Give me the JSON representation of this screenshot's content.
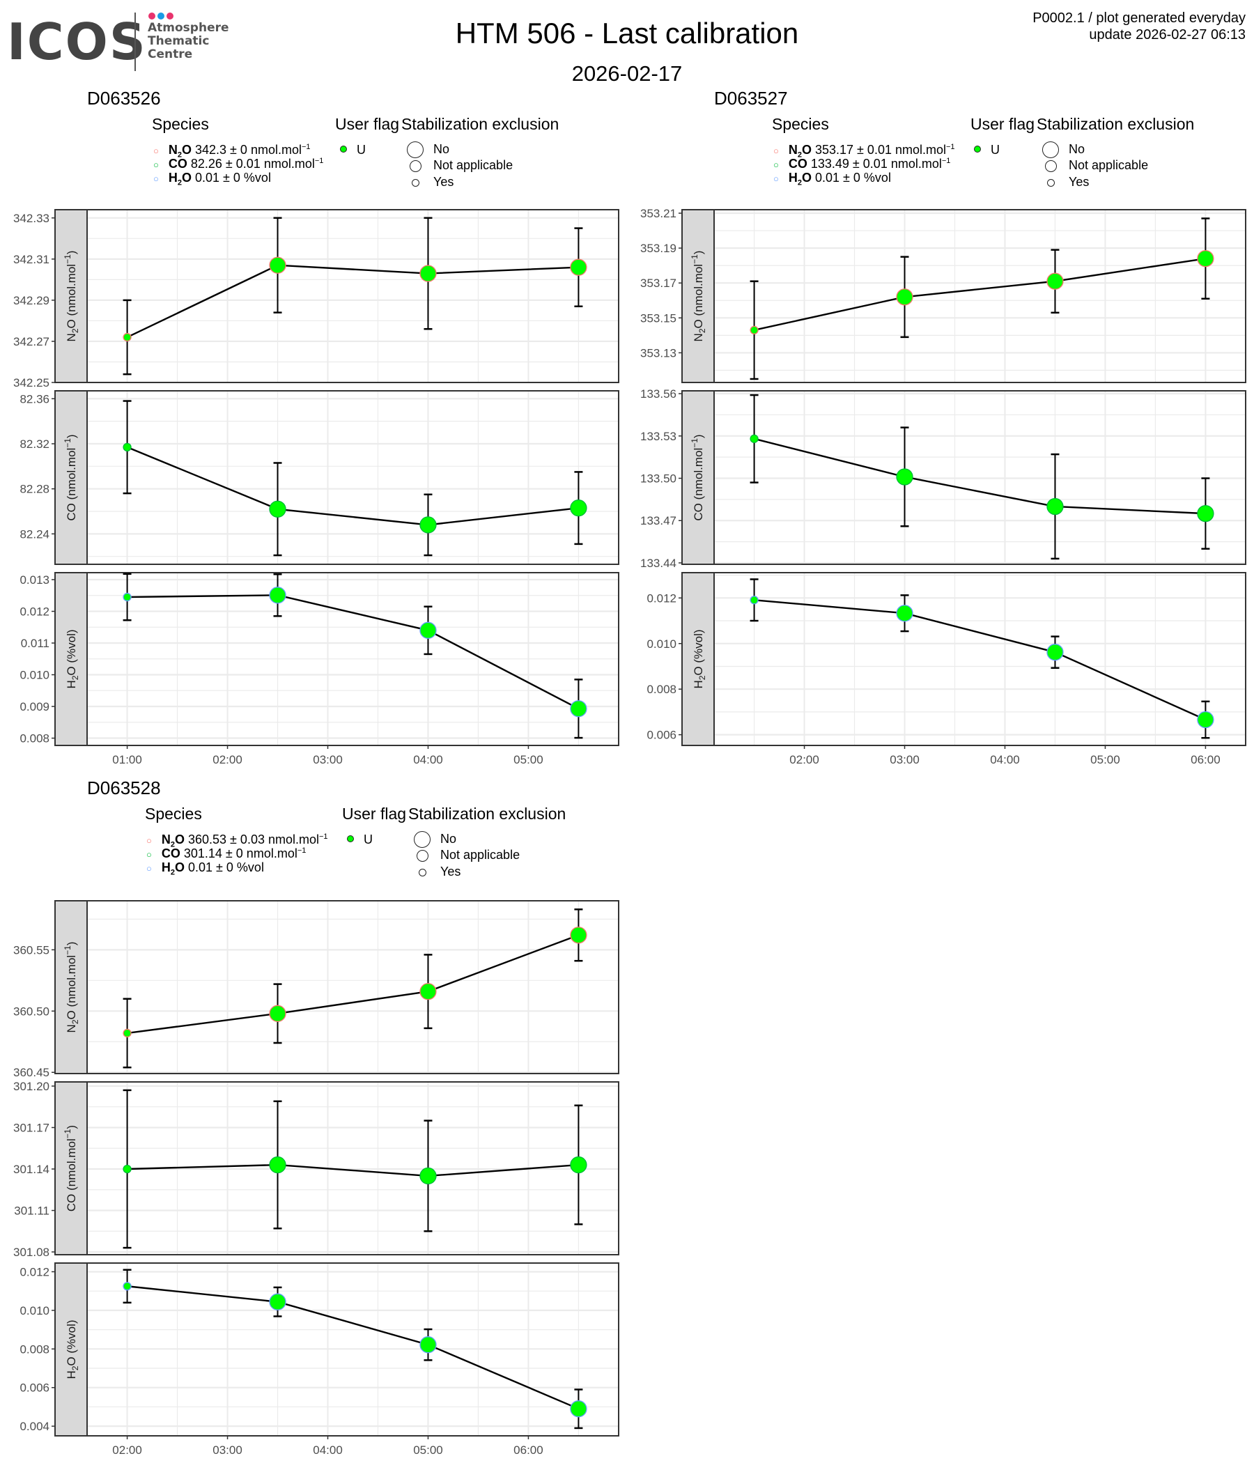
{
  "header": {
    "logo": {
      "word": "ICOS",
      "lines": [
        "Atmosphere",
        "Thematic",
        "Centre"
      ],
      "dot_colors": [
        "#e8336d",
        "#1a9be6",
        "#e8336d"
      ]
    },
    "title": "HTM 506 - Last calibration",
    "date": "2026-02-17",
    "info_line1": "P0002.1 / plot generated everyday",
    "info_line2": "update  2026-02-27 06:13"
  },
  "legend_labels": {
    "species_title": "Species",
    "flag_title": "User flag",
    "stab_title": "Stabilization exclusion",
    "flag_value": "U",
    "stab_values": [
      "No",
      "Not applicable",
      "Yes"
    ],
    "species_colors": {
      "N2O": "#f8766d",
      "CO": "#00ba38",
      "H2O": "#619cff"
    },
    "point_fill": "#00ff00"
  },
  "chart_data": [
    {
      "type": "line",
      "id": "D063526",
      "title": "D063526",
      "legend": {
        "N2O": {
          "name_main": "N",
          "name_sub": "2",
          "name_end": "O",
          "value": "342.3",
          "pm": "±",
          "unc": "0",
          "unit": "nmol.mol",
          "unit_sup": "−1"
        },
        "CO": {
          "name_main": "CO",
          "value": "82.26",
          "pm": "±",
          "unc": "0.01",
          "unit": "nmol.mol",
          "unit_sup": "−1"
        },
        "H2O": {
          "name_main": "H",
          "name_sub": "2",
          "name_end": "O",
          "value": "0.01",
          "pm": "±",
          "unc": "0",
          "unit": "%vol"
        }
      },
      "x": [
        "01:00",
        "02:30",
        "04:00",
        "05:30"
      ],
      "x_hours": [
        1.0,
        2.5,
        4.0,
        5.5
      ],
      "xlim_hours": [
        0.6,
        5.9
      ],
      "xticks": [
        "01:00",
        "02:00",
        "03:00",
        "04:00",
        "05:00"
      ],
      "xticks_hours": [
        1,
        2,
        3,
        4,
        5
      ],
      "stabilization": [
        "Yes",
        "No",
        "No",
        "No"
      ],
      "flag": [
        "U",
        "U",
        "U",
        "U"
      ],
      "panels": [
        {
          "species": "N2O",
          "ylabel": "N2O (nmol.mol-1)",
          "ylabel_main": "N",
          "ylabel_sub": "2",
          "ylabel_end": "O (nmol.mol",
          "ylabel_sup": "−1",
          "ylabel_close": ")",
          "ylim": [
            342.25,
            342.334
          ],
          "yticks": [
            "342.25",
            "342.27",
            "342.29",
            "342.31",
            "342.33"
          ],
          "values": [
            342.272,
            342.307,
            342.303,
            342.306
          ],
          "err": [
            0.018,
            0.023,
            0.027,
            0.019
          ]
        },
        {
          "species": "CO",
          "ylabel": "CO (nmol.mol-1)",
          "ylabel_main": "CO (nmol.mol",
          "ylabel_sup": "−1",
          "ylabel_close": ")",
          "ylim": [
            82.213,
            82.367
          ],
          "yticks": [
            "82.24",
            "82.28",
            "82.32",
            "82.36"
          ],
          "values": [
            82.317,
            82.262,
            82.248,
            82.263
          ],
          "err": [
            0.041,
            0.041,
            0.027,
            0.032
          ]
        },
        {
          "species": "H2O",
          "ylabel": "H2O (%vol)",
          "ylabel_main": "H",
          "ylabel_sub": "2",
          "ylabel_end": "O (%vol)",
          "ylim": [
            0.00777,
            0.01322
          ],
          "yticks": [
            "0.008",
            "0.009",
            "0.010",
            "0.011",
            "0.012",
            "0.013"
          ],
          "values": [
            0.01245,
            0.01251,
            0.0114,
            0.00893
          ],
          "err": [
            0.00073,
            0.00066,
            0.00075,
            0.00092
          ]
        }
      ]
    },
    {
      "type": "line",
      "id": "D063527",
      "title": "D063527",
      "legend": {
        "N2O": {
          "name_main": "N",
          "name_sub": "2",
          "name_end": "O",
          "value": "353.17",
          "pm": "±",
          "unc": "0.01",
          "unit": "nmol.mol",
          "unit_sup": "−1"
        },
        "CO": {
          "name_main": "CO",
          "value": "133.49",
          "pm": "±",
          "unc": "0.01",
          "unit": "nmol.mol",
          "unit_sup": "−1"
        },
        "H2O": {
          "name_main": "H",
          "name_sub": "2",
          "name_end": "O",
          "value": "0.01",
          "pm": "±",
          "unc": "0",
          "unit": "%vol"
        }
      },
      "x": [
        "01:30",
        "03:00",
        "04:30",
        "06:00"
      ],
      "x_hours": [
        1.5,
        3.0,
        4.5,
        6.0
      ],
      "xlim_hours": [
        1.1,
        6.4
      ],
      "xticks": [
        "02:00",
        "03:00",
        "04:00",
        "05:00",
        "06:00"
      ],
      "xticks_hours": [
        2,
        3,
        4,
        5,
        6
      ],
      "stabilization": [
        "Yes",
        "No",
        "No",
        "No"
      ],
      "flag": [
        "U",
        "U",
        "U",
        "U"
      ],
      "panels": [
        {
          "species": "N2O",
          "ylabel": "N2O (nmol.mol-1)",
          "ylabel_main": "N",
          "ylabel_sub": "2",
          "ylabel_end": "O (nmol.mol",
          "ylabel_sup": "−1",
          "ylabel_close": ")",
          "ylim": [
            353.113,
            353.212
          ],
          "yticks": [
            "353.13",
            "353.15",
            "353.17",
            "353.19",
            "353.21"
          ],
          "values": [
            353.143,
            353.162,
            353.171,
            353.184
          ],
          "err": [
            0.028,
            0.023,
            0.018,
            0.023
          ]
        },
        {
          "species": "CO",
          "ylabel": "CO (nmol.mol-1)",
          "ylabel_main": "CO (nmol.mol",
          "ylabel_sup": "−1",
          "ylabel_close": ")",
          "ylim": [
            133.439,
            133.562
          ],
          "yticks": [
            "133.44",
            "133.47",
            "133.50",
            "133.53",
            "133.56"
          ],
          "values": [
            133.528,
            133.501,
            133.48,
            133.475
          ],
          "err": [
            0.031,
            0.035,
            0.037,
            0.025
          ]
        },
        {
          "species": "H2O",
          "ylabel": "H2O (%vol)",
          "ylabel_main": "H",
          "ylabel_sub": "2",
          "ylabel_end": "O (%vol)",
          "ylim": [
            0.00553,
            0.01311
          ],
          "yticks": [
            "0.006",
            "0.008",
            "0.010",
            "0.012"
          ],
          "values": [
            0.01191,
            0.01133,
            0.00962,
            0.00666
          ],
          "err": [
            0.00091,
            0.00079,
            0.00069,
            0.0008
          ]
        }
      ]
    },
    {
      "type": "line",
      "id": "D063528",
      "title": "D063528",
      "legend": {
        "N2O": {
          "name_main": "N",
          "name_sub": "2",
          "name_end": "O",
          "value": "360.53",
          "pm": "±",
          "unc": "0.03",
          "unit": "nmol.mol",
          "unit_sup": "−1"
        },
        "CO": {
          "name_main": "CO",
          "value": "301.14",
          "pm": "±",
          "unc": "0",
          "unit": "nmol.mol",
          "unit_sup": "−1"
        },
        "H2O": {
          "name_main": "H",
          "name_sub": "2",
          "name_end": "O",
          "value": "0.01",
          "pm": "±",
          "unc": "0",
          "unit": "%vol"
        }
      },
      "x": [
        "02:00",
        "03:30",
        "05:00",
        "06:30"
      ],
      "x_hours": [
        2.0,
        3.5,
        5.0,
        6.5
      ],
      "xlim_hours": [
        1.6,
        6.9
      ],
      "xticks": [
        "02:00",
        "03:00",
        "04:00",
        "05:00",
        "06:00"
      ],
      "xticks_hours": [
        2,
        3,
        4,
        5,
        6
      ],
      "stabilization": [
        "Yes",
        "No",
        "No",
        "No"
      ],
      "flag": [
        "U",
        "U",
        "U",
        "U"
      ],
      "panels": [
        {
          "species": "N2O",
          "ylabel": "N2O (nmol.mol-1)",
          "ylabel_main": "N",
          "ylabel_sub": "2",
          "ylabel_end": "O (nmol.mol",
          "ylabel_sup": "−1",
          "ylabel_close": ")",
          "ylim": [
            360.449,
            360.59
          ],
          "yticks": [
            "360.45",
            "360.50",
            "360.55"
          ],
          "values": [
            360.482,
            360.498,
            360.516,
            360.562
          ],
          "err": [
            0.028,
            0.024,
            0.03,
            0.021
          ]
        },
        {
          "species": "CO",
          "ylabel": "CO (nmol.mol-1)",
          "ylabel_main": "CO (nmol.mol",
          "ylabel_sup": "−1",
          "ylabel_close": ")",
          "ylim": [
            301.078,
            301.203
          ],
          "yticks": [
            "301.08",
            "301.11",
            "301.14",
            "301.17",
            "301.20"
          ],
          "values": [
            301.14,
            301.143,
            301.135,
            301.143
          ],
          "err": [
            0.057,
            0.046,
            0.04,
            0.043
          ]
        },
        {
          "species": "H2O",
          "ylabel": "H2O (%vol)",
          "ylabel_main": "H",
          "ylabel_sub": "2",
          "ylabel_end": "O (%vol)",
          "ylim": [
            0.0035,
            0.01245
          ],
          "yticks": [
            "0.004",
            "0.006",
            "0.008",
            "0.010",
            "0.012"
          ],
          "values": [
            0.01125,
            0.01044,
            0.00822,
            0.0049
          ],
          "err": [
            0.00085,
            0.00075,
            0.0008,
            0.001
          ]
        }
      ]
    }
  ]
}
